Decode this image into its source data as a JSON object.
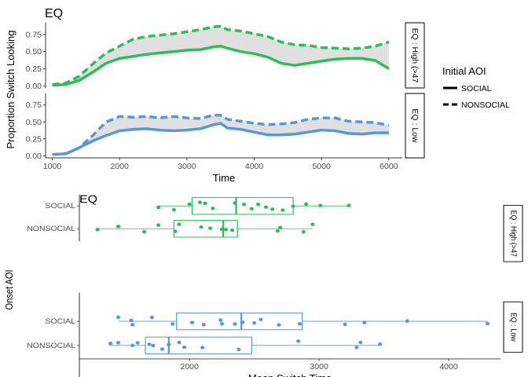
{
  "colors": {
    "high": "#2DBE5A",
    "low": "#5598DD",
    "ribbon": "#E0E0E0",
    "axis": "#333333",
    "text": "#000000",
    "tick_text": "#4D4D4D"
  },
  "chart_data": [
    {
      "type": "line",
      "title": "EQ",
      "xlabel": "Time",
      "ylabel": "Proportion Switch Looking",
      "xlim": [
        900,
        6200
      ],
      "x_ticks": [
        "1000",
        "2000",
        "3000",
        "4000",
        "5000",
        "6000"
      ],
      "x_tick_values": [
        1000,
        2000,
        3000,
        4000,
        5000,
        6000
      ],
      "ylim": [
        -0.03,
        0.92
      ],
      "y_ticks": [
        "0.00",
        "0.25",
        "0.50",
        "0.75"
      ],
      "y_tick_values": [
        0,
        0.25,
        0.5,
        0.75
      ],
      "legend": {
        "title": "Initial AOI",
        "placement": "right",
        "entries": [
          "SOCIAL",
          "NONSOCIAL"
        ]
      },
      "facets": [
        {
          "label": "EQ : High (>47",
          "color_key": "high",
          "series": [
            {
              "name": "SOCIAL",
              "style": "solid",
              "x": [
                1000,
                1200,
                1400,
                1600,
                1800,
                2000,
                2200,
                2400,
                2600,
                2800,
                3000,
                3200,
                3400,
                3500,
                3600,
                3800,
                4000,
                4200,
                4400,
                4600,
                4800,
                5000,
                5200,
                5400,
                5600,
                5800,
                6000
              ],
              "values": [
                0.01,
                0.02,
                0.08,
                0.2,
                0.33,
                0.4,
                0.43,
                0.46,
                0.48,
                0.5,
                0.52,
                0.53,
                0.57,
                0.58,
                0.55,
                0.5,
                0.47,
                0.42,
                0.33,
                0.3,
                0.33,
                0.36,
                0.39,
                0.4,
                0.4,
                0.37,
                0.25
              ]
            },
            {
              "name": "NONSOCIAL",
              "style": "dashed",
              "x": [
                1000,
                1200,
                1400,
                1600,
                1800,
                2000,
                2200,
                2400,
                2600,
                2800,
                3000,
                3200,
                3400,
                3500,
                3600,
                3800,
                4000,
                4200,
                4400,
                4600,
                4800,
                5000,
                5200,
                5400,
                5600,
                5800,
                6000
              ],
              "values": [
                0.02,
                0.04,
                0.14,
                0.32,
                0.48,
                0.58,
                0.68,
                0.72,
                0.74,
                0.76,
                0.79,
                0.82,
                0.86,
                0.87,
                0.82,
                0.8,
                0.76,
                0.72,
                0.64,
                0.6,
                0.59,
                0.56,
                0.55,
                0.54,
                0.55,
                0.58,
                0.64
              ]
            }
          ]
        },
        {
          "label": "EQ : Low",
          "color_key": "low",
          "series": [
            {
              "name": "SOCIAL",
              "style": "solid",
              "x": [
                1000,
                1200,
                1400,
                1600,
                1800,
                2000,
                2200,
                2400,
                2600,
                2800,
                3000,
                3200,
                3400,
                3500,
                3600,
                3800,
                4000,
                4200,
                4400,
                4600,
                4800,
                5000,
                5200,
                5400,
                5600,
                5800,
                6000
              ],
              "values": [
                0.02,
                0.03,
                0.12,
                0.22,
                0.3,
                0.37,
                0.39,
                0.4,
                0.38,
                0.37,
                0.38,
                0.4,
                0.46,
                0.48,
                0.41,
                0.39,
                0.35,
                0.31,
                0.31,
                0.32,
                0.35,
                0.38,
                0.37,
                0.33,
                0.32,
                0.34,
                0.34
              ]
            },
            {
              "name": "NONSOCIAL",
              "style": "dashed",
              "x": [
                1000,
                1200,
                1400,
                1600,
                1800,
                2000,
                2200,
                2400,
                2600,
                2800,
                3000,
                3200,
                3400,
                3500,
                3600,
                3800,
                4000,
                4200,
                4400,
                4600,
                4800,
                5000,
                5200,
                5400,
                5600,
                5800,
                6000
              ],
              "values": [
                0.02,
                0.03,
                0.12,
                0.3,
                0.5,
                0.58,
                0.57,
                0.58,
                0.56,
                0.58,
                0.56,
                0.55,
                0.6,
                0.6,
                0.54,
                0.51,
                0.48,
                0.46,
                0.47,
                0.49,
                0.54,
                0.56,
                0.56,
                0.51,
                0.5,
                0.49,
                0.45
              ]
            }
          ]
        }
      ]
    },
    {
      "type": "boxplot",
      "title": "EQ",
      "xlabel": "Mean Switch Time",
      "ylabel": "Onset AOI",
      "xlim": [
        1150,
        4400
      ],
      "x_ticks": [
        "2000",
        "3000",
        "4000"
      ],
      "x_tick_values": [
        2000,
        3000,
        4000
      ],
      "categories": [
        "SOCIAL",
        "NONSOCIAL"
      ],
      "facets": [
        {
          "label": "EQ : High (>47",
          "color_key": "high",
          "boxes": [
            {
              "category": "SOCIAL",
              "min": 1750,
              "q1": 2020,
              "median": 2360,
              "q3": 2800,
              "max": 3230,
              "points": [
                1760,
                1880,
                2000,
                2080,
                2120,
                2180,
                2350,
                2420,
                2480,
                2530,
                2590,
                2640,
                2720,
                2800,
                2900,
                3010,
                3230
              ]
            },
            {
              "category": "NONSOCIAL",
              "min": 1280,
              "q1": 1880,
              "median": 2260,
              "q3": 2370,
              "max": 2950,
              "points": [
                1290,
                1450,
                1650,
                1760,
                1890,
                1920,
                2090,
                2160,
                2250,
                2280,
                2330,
                2680,
                2700,
                2880,
                2950
              ]
            }
          ]
        },
        {
          "label": "EQ : Low",
          "color_key": "low",
          "boxes": [
            {
              "category": "SOCIAL",
              "min": 1450,
              "q1": 1900,
              "median": 2400,
              "q3": 2870,
              "max": 4300,
              "points": [
                1450,
                1550,
                1560,
                1710,
                1870,
                2020,
                2110,
                2240,
                2250,
                2350,
                2410,
                2500,
                2550,
                2690,
                2850,
                3200,
                3350,
                3680,
                4300
              ]
            },
            {
              "category": "NONSOCIAL",
              "min": 1380,
              "q1": 1660,
              "median": 1840,
              "q3": 2480,
              "max": 3470,
              "points": [
                1390,
                1450,
                1560,
                1600,
                1690,
                1720,
                1790,
                1840,
                1920,
                1960,
                2100,
                2380,
                2840,
                3290,
                3320,
                3470
              ]
            }
          ]
        }
      ]
    }
  ]
}
